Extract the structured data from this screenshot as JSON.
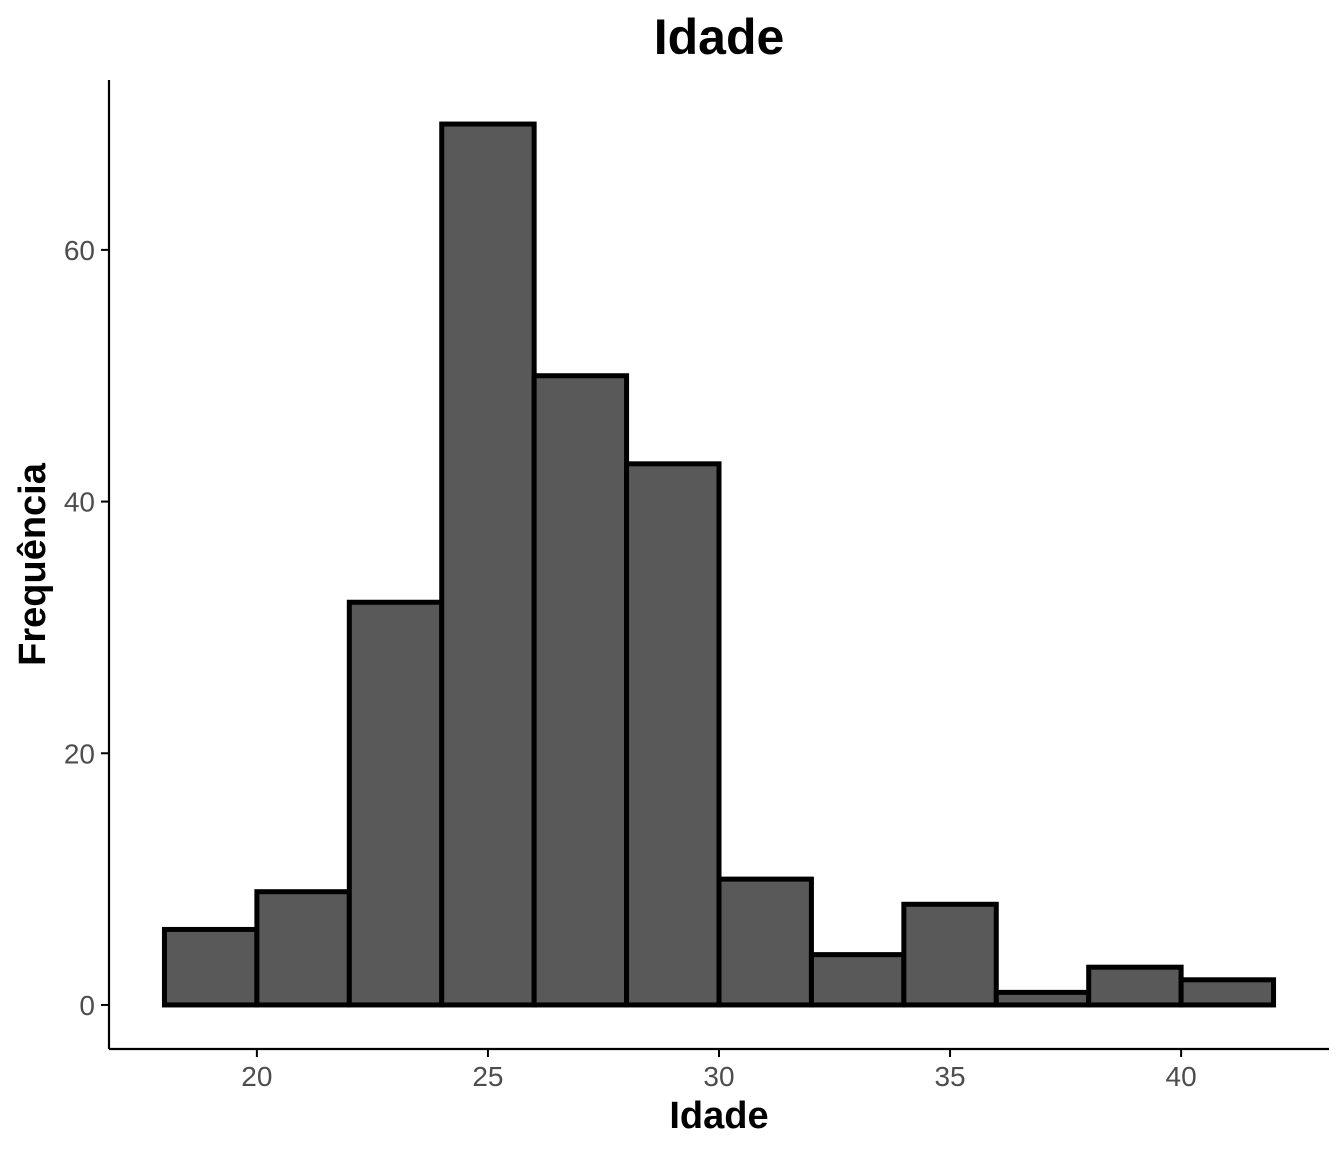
{
  "chart_data": {
    "type": "bar",
    "title": "Idade",
    "xlabel": "Idade",
    "ylabel": "Frequência",
    "bin_width": 2,
    "bins": [
      {
        "start": 18,
        "end": 20,
        "count": 6
      },
      {
        "start": 20,
        "end": 22,
        "count": 9
      },
      {
        "start": 22,
        "end": 24,
        "count": 32
      },
      {
        "start": 24,
        "end": 26,
        "count": 70
      },
      {
        "start": 26,
        "end": 28,
        "count": 50
      },
      {
        "start": 28,
        "end": 30,
        "count": 43
      },
      {
        "start": 30,
        "end": 32,
        "count": 10
      },
      {
        "start": 32,
        "end": 34,
        "count": 4
      },
      {
        "start": 34,
        "end": 36,
        "count": 8
      },
      {
        "start": 36,
        "end": 38,
        "count": 1
      },
      {
        "start": 38,
        "end": 40,
        "count": 3
      },
      {
        "start": 40,
        "end": 42,
        "count": 2
      }
    ],
    "x_ticks": [
      "20",
      "25",
      "30",
      "35",
      "40"
    ],
    "y_ticks": [
      "0",
      "20",
      "40",
      "60"
    ],
    "xlim": [
      16.8,
      43.2
    ],
    "ylim": [
      -3.5,
      73.5
    ],
    "grid": false,
    "colors": {
      "bar_fill": "#595959",
      "bar_outline": "#000000",
      "tick_label": "#4d4d4d"
    }
  }
}
